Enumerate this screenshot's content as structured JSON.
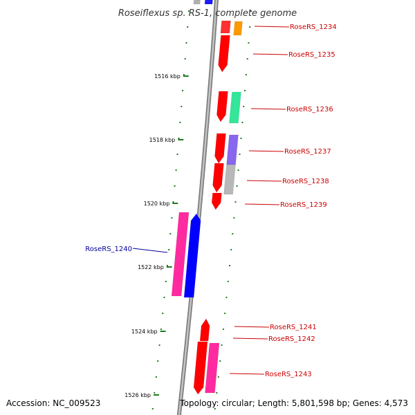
{
  "title": "Roseiflexus sp. RS-1, complete genome",
  "accession": "Accession: NC_009523",
  "summary": "Topology: circular; Length: 5,801,598 bp; Genes: 4,573",
  "colors": {
    "backbone": "#9a9a9a",
    "tick": "#1f7a1f",
    "label_right": "#cc0000",
    "label_left": "#000099"
  },
  "kbp_labels": [
    "1516 kbp",
    "1518 kbp",
    "1520 kbp",
    "1522 kbp",
    "1524 kbp",
    "1526 kbp"
  ],
  "genes": [
    {
      "name": "RoseRS_1234",
      "side": "right"
    },
    {
      "name": "RoseRS_1235",
      "side": "right"
    },
    {
      "name": "RoseRS_1236",
      "side": "right"
    },
    {
      "name": "RoseRS_1237",
      "side": "right"
    },
    {
      "name": "RoseRS_1238",
      "side": "right"
    },
    {
      "name": "RoseRS_1239",
      "side": "right"
    },
    {
      "name": "RoseRS_1240",
      "side": "left"
    },
    {
      "name": "RoseRS_1241",
      "side": "right"
    },
    {
      "name": "RoseRS_1242",
      "side": "right"
    },
    {
      "name": "RoseRS_1243",
      "side": "right"
    }
  ]
}
